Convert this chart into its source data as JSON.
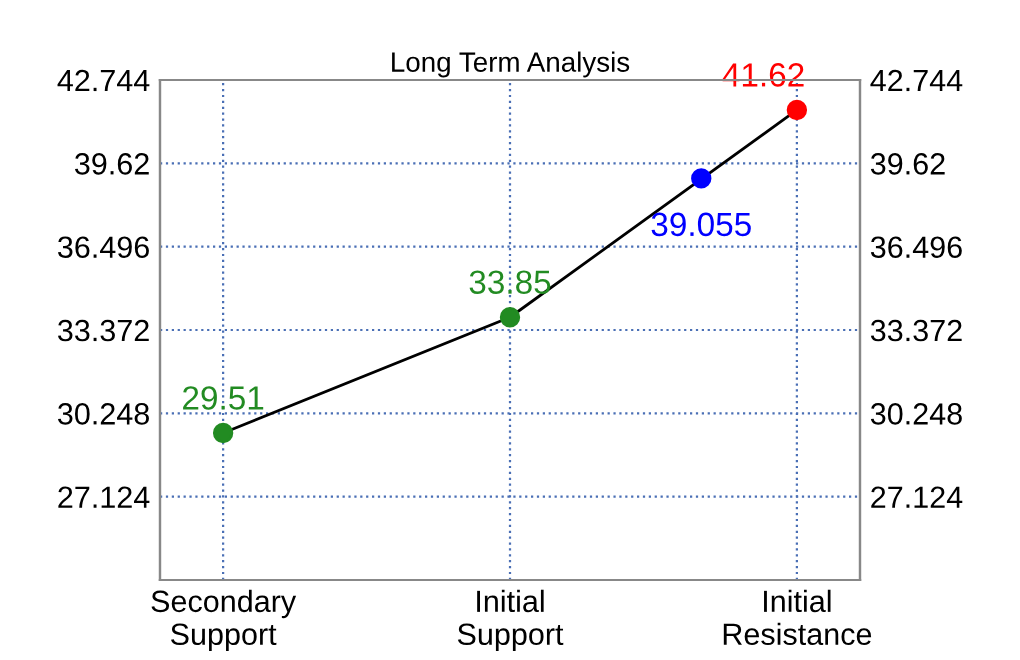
{
  "chart_data": {
    "type": "line",
    "title": "Long Term Analysis",
    "categories": [
      "Secondary\nSupport",
      null,
      null,
      "Initial\nSupport",
      null,
      null,
      "Initial\nResistance"
    ],
    "ylim": [
      24,
      42.744
    ],
    "yticks": [
      27.124,
      30.248,
      33.372,
      36.496,
      39.62,
      42.744
    ],
    "y2lim": [
      24,
      42.744
    ],
    "y2ticks": [
      27.124,
      30.248,
      33.372,
      36.496,
      39.62,
      42.744
    ],
    "grid": true,
    "legend": false,
    "line_style": "solid",
    "series": [
      {
        "color": "#000000",
        "values": [
          29.51,
          null,
          null,
          33.85,
          null,
          null,
          41.62
        ],
        "marker": "none"
      },
      {
        "type": "scatter",
        "values": [
          29.51,
          null,
          null,
          33.85,
          null,
          39.055,
          41.62
        ],
        "colors": [
          "#228b22",
          null,
          null,
          "#228b22",
          null,
          "#0000ff",
          "#ff0000"
        ],
        "marker": "circle",
        "data_labels": true
      }
    ]
  }
}
